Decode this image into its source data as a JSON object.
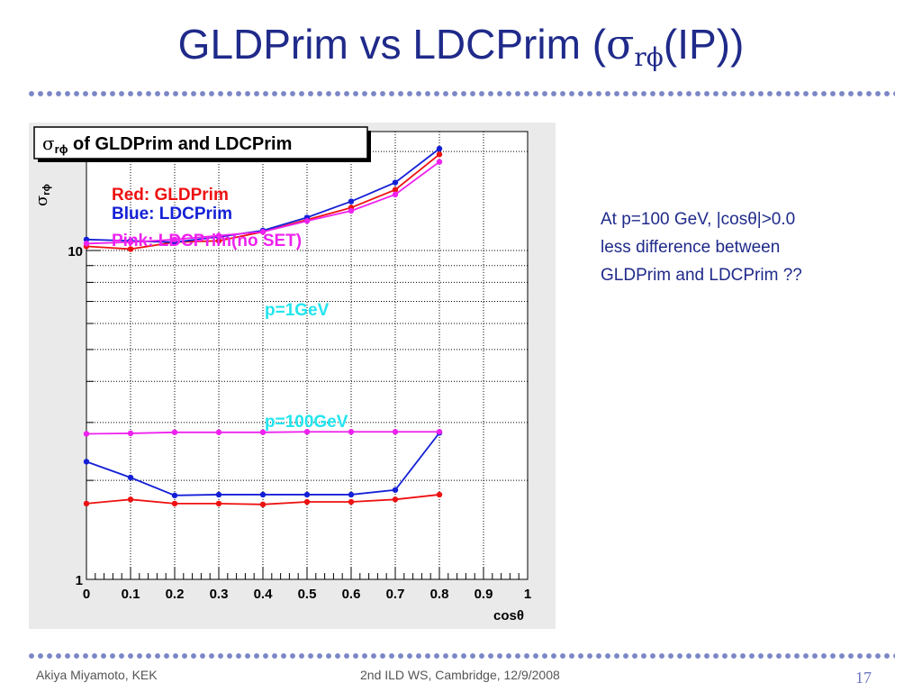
{
  "slide": {
    "title_main": "GLDPrim vs LDCPrim (",
    "title_sigma": "σ",
    "title_sub": "rϕ",
    "title_end": "(IP))",
    "note_line1": "At p=100 GeV, |cosθ|>0.0",
    "note_line2": "less difference between",
    "note_line3": "GLDPrim and LDCPrim ??",
    "footer_author": "Akiya Miyamoto, KEK",
    "footer_event": "2nd ILD WS, Cambridge, 12/9/2008",
    "page_number": "17"
  },
  "colors": {
    "red": "#ee1111",
    "blue": "#1420d6",
    "pink": "#ee22ee",
    "cyan": "#22e5ee"
  },
  "chart_data": {
    "type": "line",
    "title_sigma": "σ",
    "title_sub": "rϕ",
    "title_rest": " of GLDPrim and LDCPrim",
    "ylabel_sigma": "σ",
    "ylabel_sub": "rϕ",
    "xlabel": "cosθ",
    "xlim": [
      0,
      1
    ],
    "ylim": [
      1,
      23
    ],
    "y_scale": "log",
    "grid": true,
    "x_ticks": [
      "0",
      "0.1",
      "0.2",
      "0.3",
      "0.4",
      "0.5",
      "0.6",
      "0.7",
      "0.8",
      "0.9",
      "1"
    ],
    "y_tick_labels": [
      "1",
      "10"
    ],
    "legend": [
      {
        "text": "Red: GLDPrim",
        "color": "#ee1111"
      },
      {
        "text": "Blue: LDCPrim",
        "color": "#1420d6"
      },
      {
        "text": "Pink: LDCPrim(no SET)",
        "color": "#ee22ee"
      }
    ],
    "annotations": [
      "p=1GeV",
      "p=100GeV"
    ],
    "x": [
      0,
      0.1,
      0.2,
      0.3,
      0.4,
      0.5,
      0.6,
      0.7,
      0.8
    ],
    "series": [
      {
        "name": "Red: GLDPrim",
        "color": "#ee1111",
        "values": [
          10.3,
          10.1,
          10.6,
          10.7,
          11.4,
          12.4,
          13.5,
          15.3,
          19.6
        ]
      },
      {
        "name": "Blue: LDCPrim",
        "color": "#1420d6",
        "values": [
          10.8,
          10.7,
          10.6,
          11.0,
          11.5,
          12.6,
          14.1,
          16.1,
          20.4
        ]
      },
      {
        "name": "Pink: LDCPrim(no SET)",
        "color": "#ee22ee",
        "values": [
          10.5,
          10.6,
          10.8,
          11.1,
          11.4,
          12.3,
          13.2,
          14.8,
          18.6
        ]
      },
      {
        "name": "Red: GLDPrim",
        "color": "#ee1111",
        "values": [
          1.7,
          1.75,
          1.7,
          1.7,
          1.69,
          1.72,
          1.72,
          1.75,
          1.81
        ]
      },
      {
        "name": "Blue: LDCPrim",
        "color": "#1420d6",
        "values": [
          2.28,
          2.04,
          1.8,
          1.81,
          1.81,
          1.81,
          1.81,
          1.87,
          2.79
        ]
      },
      {
        "name": "Pink: LDCPrim(no SET)",
        "color": "#ee22ee",
        "values": [
          2.77,
          2.78,
          2.8,
          2.8,
          2.8,
          2.81,
          2.81,
          2.81,
          2.81
        ]
      }
    ]
  }
}
